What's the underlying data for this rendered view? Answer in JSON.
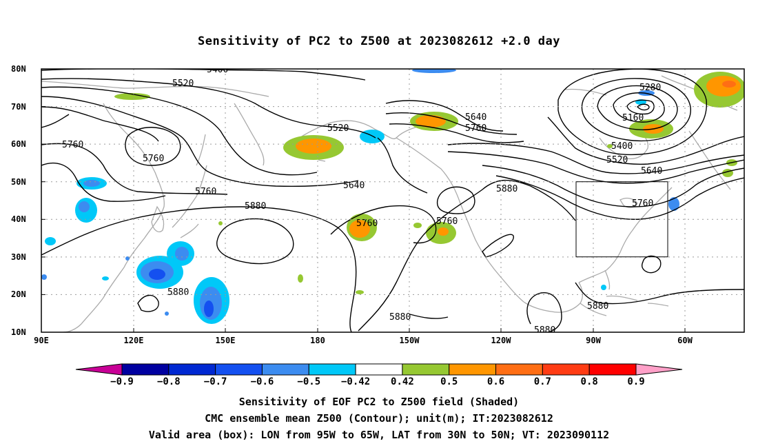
{
  "title": "Sensitivity of PC2 to Z500 at 2023082612 +2.0 day",
  "lat_labels": [
    "80N",
    "70N",
    "60N",
    "50N",
    "40N",
    "30N",
    "20N",
    "10N"
  ],
  "lon_labels": [
    "90E",
    "120E",
    "150E",
    "180",
    "150W",
    "120W",
    "90W",
    "60W"
  ],
  "contour_labels": [
    "5400",
    "5520",
    "5760",
    "5760",
    "5520",
    "5640",
    "5760",
    "5640",
    "5760",
    "5880",
    "5880",
    "5760",
    "5760",
    "5280",
    "5160",
    "5400",
    "5520",
    "5640",
    "5760",
    "5880",
    "5880",
    "5880",
    "5880"
  ],
  "colorbar": {
    "labels": [
      "-0.9",
      "-0.8",
      "-0.7",
      "-0.6",
      "-0.5",
      "-0.42",
      "0.42",
      "0.5",
      "0.6",
      "0.7",
      "0.8",
      "0.9"
    ],
    "colors": [
      "#c80096",
      "#0000a0",
      "#0028d2",
      "#1450f0",
      "#3c8cf0",
      "#00c8f8",
      "#ffffff",
      "#96c832",
      "#ff9600",
      "#ff6e14",
      "#ff3c14",
      "#ff0000",
      "#ffa0c8"
    ]
  },
  "footer": {
    "line1": "Sensitivity of EOF PC2 to Z500 field (Shaded)",
    "line2": "CMC ensemble mean Z500 (Contour); unit(m); IT:2023082612",
    "line3": "Valid area (box): LON from 95W to 65W, LAT from 30N to 50N; VT: 2023090112"
  }
}
